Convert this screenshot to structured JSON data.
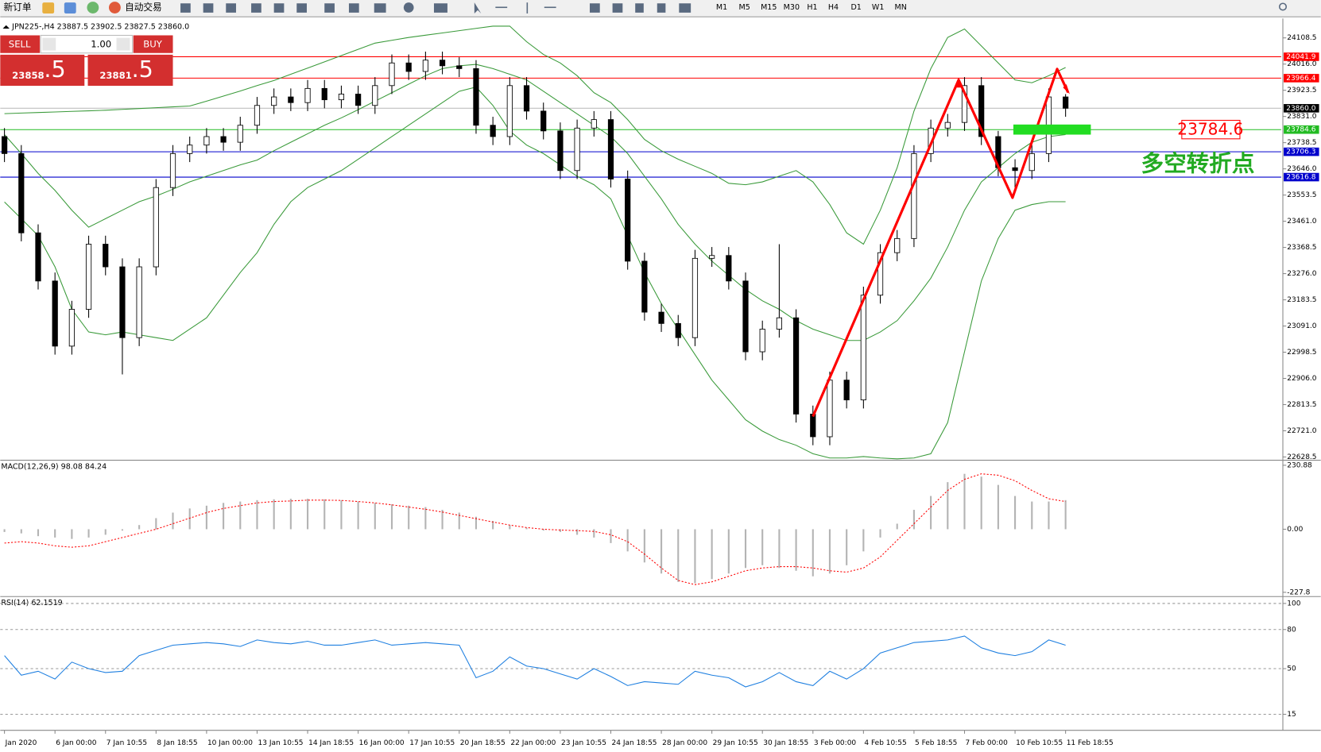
{
  "toolbar": {
    "new_order": "新订单",
    "auto_trading": "自动交易",
    "timeframes": [
      "M1",
      "M5",
      "M15",
      "M30",
      "H1",
      "H4",
      "D1",
      "W1",
      "MN"
    ]
  },
  "trade_panel": {
    "sell": "SELL",
    "buy": "BUY",
    "lots": "1.00",
    "sell_price": "23858",
    "sell_fraction": ".5",
    "buy_price": "23881",
    "buy_fraction": ".5"
  },
  "chart_data": [
    {
      "type": "candlestick",
      "title": "JPN225-,H4  23887.5 23902.5 23827.5 23860.0",
      "up_color": "#ffffff",
      "down_color": "#000000",
      "grid": false,
      "categories": [
        "Jan 2020",
        null,
        null,
        "6 Jan 00:00",
        null,
        null,
        "7 Jan 10:55",
        null,
        null,
        "8 Jan 18:55",
        null,
        null,
        "10 Jan 00:00",
        null,
        null,
        "13 Jan 10:55",
        null,
        null,
        "14 Jan 18:55",
        null,
        null,
        "16 Jan 00:00",
        null,
        null,
        "17 Jan 10:55",
        null,
        null,
        "20 Jan 18:55",
        null,
        null,
        "22 Jan 00:00",
        null,
        null,
        "23 Jan 10:55",
        null,
        null,
        "24 Jan 18:55",
        null,
        null,
        "28 Jan 00:00",
        null,
        null,
        "29 Jan 10:55",
        null,
        null,
        "30 Jan 18:55",
        null,
        null,
        "3 Feb 00:00",
        null,
        null,
        "4 Feb 10:55",
        null,
        null,
        "5 Feb 18:55",
        null,
        null,
        "7 Feb 00:00",
        null,
        null,
        "10 Feb 10:55",
        null,
        null,
        "11 Feb 18:55"
      ],
      "open": [
        23760,
        23700,
        23420,
        23250,
        23020,
        23150,
        23380,
        23300,
        23050,
        23300,
        23580,
        23700,
        23730,
        23760,
        23740,
        23800,
        23870,
        23900,
        23880,
        23930,
        23890,
        23910,
        23870,
        23940,
        24020,
        23990,
        24030,
        24010,
        24000,
        23800,
        23760,
        23940,
        23850,
        23780,
        23640,
        23790,
        23820,
        23610,
        23320,
        23140,
        23100,
        23050,
        23330,
        23340,
        23250,
        23000,
        23080,
        23120,
        22780,
        22700,
        22900,
        22830,
        23200,
        23350,
        23400,
        23700,
        23790,
        23810,
        23940,
        23760,
        23650,
        23640,
        23700,
        23900
      ],
      "high": [
        23790,
        23730,
        23450,
        23280,
        23180,
        23410,
        23410,
        23330,
        23330,
        23610,
        23730,
        23760,
        23790,
        23790,
        23830,
        23900,
        23930,
        23930,
        23960,
        23960,
        23940,
        23940,
        23970,
        24050,
        24050,
        24060,
        24060,
        24040,
        24030,
        23830,
        23970,
        23970,
        23880,
        23810,
        23820,
        23850,
        23850,
        23640,
        23350,
        23170,
        23130,
        23360,
        23370,
        23370,
        23280,
        23110,
        23380,
        23150,
        22810,
        22930,
        22930,
        23230,
        23380,
        23430,
        23730,
        23820,
        23840,
        23970,
        23970,
        23780,
        23680,
        23730,
        23930,
        23910
      ],
      "low": [
        23670,
        23390,
        23220,
        22990,
        22990,
        23120,
        23270,
        22920,
        23020,
        23270,
        23550,
        23670,
        23700,
        23710,
        23710,
        23770,
        23840,
        23850,
        23850,
        23860,
        23860,
        23840,
        23840,
        23910,
        23960,
        23960,
        23980,
        23970,
        23770,
        23730,
        23730,
        23820,
        23750,
        23610,
        23610,
        23760,
        23580,
        23290,
        23110,
        23070,
        23020,
        23020,
        23300,
        23220,
        22970,
        22970,
        23050,
        22750,
        22670,
        22670,
        22800,
        22800,
        23170,
        23320,
        23370,
        23670,
        23760,
        23780,
        23730,
        23620,
        23580,
        23610,
        23670,
        23830
      ],
      "close": [
        23700,
        23420,
        23250,
        23020,
        23150,
        23380,
        23300,
        23050,
        23300,
        23580,
        23700,
        23730,
        23760,
        23740,
        23800,
        23870,
        23900,
        23880,
        23930,
        23890,
        23910,
        23870,
        23940,
        24020,
        23990,
        24030,
        24010,
        24000,
        23800,
        23760,
        23940,
        23850,
        23780,
        23640,
        23790,
        23820,
        23610,
        23320,
        23140,
        23100,
        23050,
        23330,
        23340,
        23250,
        23000,
        23080,
        23120,
        22780,
        22700,
        22900,
        22830,
        23200,
        23350,
        23400,
        23700,
        23790,
        23810,
        23940,
        23760,
        23650,
        23640,
        23700,
        23900,
        23860
      ],
      "series": [
        {
          "color": "#3a9a3a",
          "values": [
            23841,
            23843,
            23845,
            23847,
            23849,
            23851,
            23853,
            23856,
            23859,
            23862,
            23865,
            23868,
            23885,
            23903,
            23921,
            23940,
            23958,
            23980,
            24002,
            24024,
            24046,
            24068,
            24090,
            24100,
            24110,
            24118,
            24126,
            24134,
            24142,
            24150,
            24150,
            24095,
            24050,
            24020,
            23975,
            23915,
            23880,
            23820,
            23750,
            23710,
            23680,
            23655,
            23630,
            23595,
            23590,
            23600,
            23620,
            23640,
            23600,
            23520,
            23420,
            23380,
            23500,
            23650,
            23850,
            24000,
            24110,
            24140,
            24080,
            24020,
            23960,
            23950,
            23975,
            24004
          ]
        },
        {
          "color": "#3a9a3a",
          "values": [
            23767,
            23700,
            23630,
            23570,
            23500,
            23440,
            23470,
            23500,
            23530,
            23550,
            23574,
            23600,
            23620,
            23640,
            23660,
            23677,
            23710,
            23740,
            23770,
            23800,
            23826,
            23855,
            23885,
            23915,
            23945,
            23975,
            24000,
            24010,
            24015,
            24000,
            23980,
            23960,
            23920,
            23880,
            23840,
            23800,
            23760,
            23700,
            23620,
            23540,
            23450,
            23380,
            23320,
            23270,
            23220,
            23180,
            23150,
            23110,
            23080,
            23060,
            23040,
            23040,
            23070,
            23110,
            23180,
            23260,
            23370,
            23500,
            23600,
            23650,
            23700,
            23740,
            23760,
            23767
          ]
        },
        {
          "color": "#3a9a3a",
          "values": [
            23529,
            23470,
            23410,
            23300,
            23150,
            23070,
            23060,
            23070,
            23060,
            23050,
            23040,
            23080,
            23120,
            23200,
            23280,
            23350,
            23450,
            23530,
            23580,
            23610,
            23640,
            23680,
            23720,
            23760,
            23800,
            23840,
            23880,
            23920,
            23935,
            23870,
            23780,
            23730,
            23700,
            23660,
            23620,
            23590,
            23540,
            23410,
            23280,
            23170,
            23080,
            22990,
            22900,
            22830,
            22760,
            22720,
            22690,
            22670,
            22640,
            22625,
            22625,
            22630,
            22625,
            22622,
            22625,
            22640,
            22750,
            23000,
            23250,
            23400,
            23500,
            23520,
            23530,
            23530
          ]
        }
      ],
      "ylim": [
        22620,
        24171
      ],
      "yticks": [
        24108.5,
        {
          "value": 24016,
          "label": "24016.0"
        },
        23923.5,
        {
          "value": 23831,
          "label": "23831.0"
        },
        23738.5,
        {
          "value": 23646,
          "label": "23646.0"
        },
        23553.5,
        {
          "value": 23461,
          "label": "23461.0"
        },
        23368.5,
        {
          "value": 23276,
          "label": "23276.0"
        },
        23183.5,
        {
          "value": 23091,
          "label": "23091.0"
        },
        22998.5,
        {
          "value": 22906,
          "label": "22906.0"
        },
        22813.5,
        {
          "value": 22721,
          "label": "22721.0"
        },
        22628.5
      ],
      "levels": [
        {
          "value": 24041.9,
          "color": "#ff0000",
          "box_color": "#ff0000"
        },
        {
          "value": 23966.4,
          "color": "#ff0000",
          "box_color": "#ff0000"
        },
        {
          "value": 23860,
          "label": "23860.0",
          "color": "#c0c0c0",
          "box_color": "#000000"
        },
        {
          "value": 23784.6,
          "color": "#22bb22",
          "box_color": "#22bb22"
        },
        {
          "value": 23706.3,
          "color": "#0000cc",
          "box_color": "#0000cc"
        },
        {
          "value": 23616.8,
          "color": "#0000cc",
          "box_color": "#0000cc"
        }
      ],
      "annotations": [
        {
          "text": "23784.6",
          "color": "#ff0000"
        },
        {
          "text": "多空转折点",
          "color": "#22aa22"
        }
      ]
    },
    {
      "type": "macd",
      "title": "MACD(12,26,9) 98.08 84.24",
      "grid": false,
      "ylim": [
        -240,
        243
      ],
      "yticks": [
        230.88,
        {
          "value": 0,
          "label": "0.00"
        },
        -227.8
      ],
      "series": [
        {
          "kind": "bar",
          "color": "#b4b4b4",
          "values": [
            -10,
            -15,
            -25,
            -30,
            -35,
            -30,
            -20,
            -5,
            15,
            40,
            60,
            75,
            85,
            95,
            100,
            105,
            108,
            110,
            110,
            108,
            105,
            100,
            95,
            90,
            85,
            80,
            70,
            60,
            45,
            30,
            15,
            5,
            -5,
            -10,
            -20,
            -30,
            -50,
            -80,
            -120,
            -160,
            -190,
            -195,
            -180,
            -160,
            -140,
            -130,
            -140,
            -150,
            -170,
            -160,
            -130,
            -80,
            -30,
            20,
            70,
            120,
            170,
            200,
            190,
            160,
            120,
            100,
            100,
            105
          ]
        },
        {
          "kind": "line",
          "dash": true,
          "color": "#ff0000",
          "values": [
            -50,
            -45,
            -50,
            -60,
            -65,
            -60,
            -45,
            -30,
            -15,
            0,
            20,
            40,
            60,
            75,
            85,
            95,
            100,
            102,
            105,
            105,
            104,
            100,
            95,
            88,
            80,
            72,
            62,
            50,
            38,
            26,
            15,
            6,
            0,
            -3,
            -5,
            -8,
            -20,
            -45,
            -90,
            -140,
            -185,
            -200,
            -190,
            -170,
            -150,
            -140,
            -135,
            -135,
            -140,
            -150,
            -155,
            -140,
            -100,
            -40,
            20,
            80,
            140,
            180,
            200,
            195,
            175,
            140,
            110,
            100
          ]
        }
      ]
    },
    {
      "type": "line",
      "title": "RSI(14) 62.1519",
      "grid": true,
      "ylim": [
        4,
        104
      ],
      "yticks": [
        100,
        80,
        50,
        15
      ],
      "series": [
        {
          "kind": "line",
          "color": "#1e7fe0",
          "values": [
            60,
            45,
            48,
            42,
            55,
            50,
            47,
            48,
            60,
            64,
            68,
            69,
            70,
            69,
            67,
            72,
            70,
            69,
            71,
            68,
            68,
            70,
            72,
            68,
            69,
            70,
            69,
            68,
            43,
            48,
            59,
            52,
            50,
            46,
            42,
            50,
            44,
            37,
            40,
            39,
            38,
            48,
            45,
            43,
            36,
            40,
            47,
            40,
            37,
            48,
            42,
            50,
            62,
            66,
            70,
            71,
            72,
            75,
            66,
            62,
            60,
            63,
            72,
            68
          ]
        }
      ]
    }
  ]
}
